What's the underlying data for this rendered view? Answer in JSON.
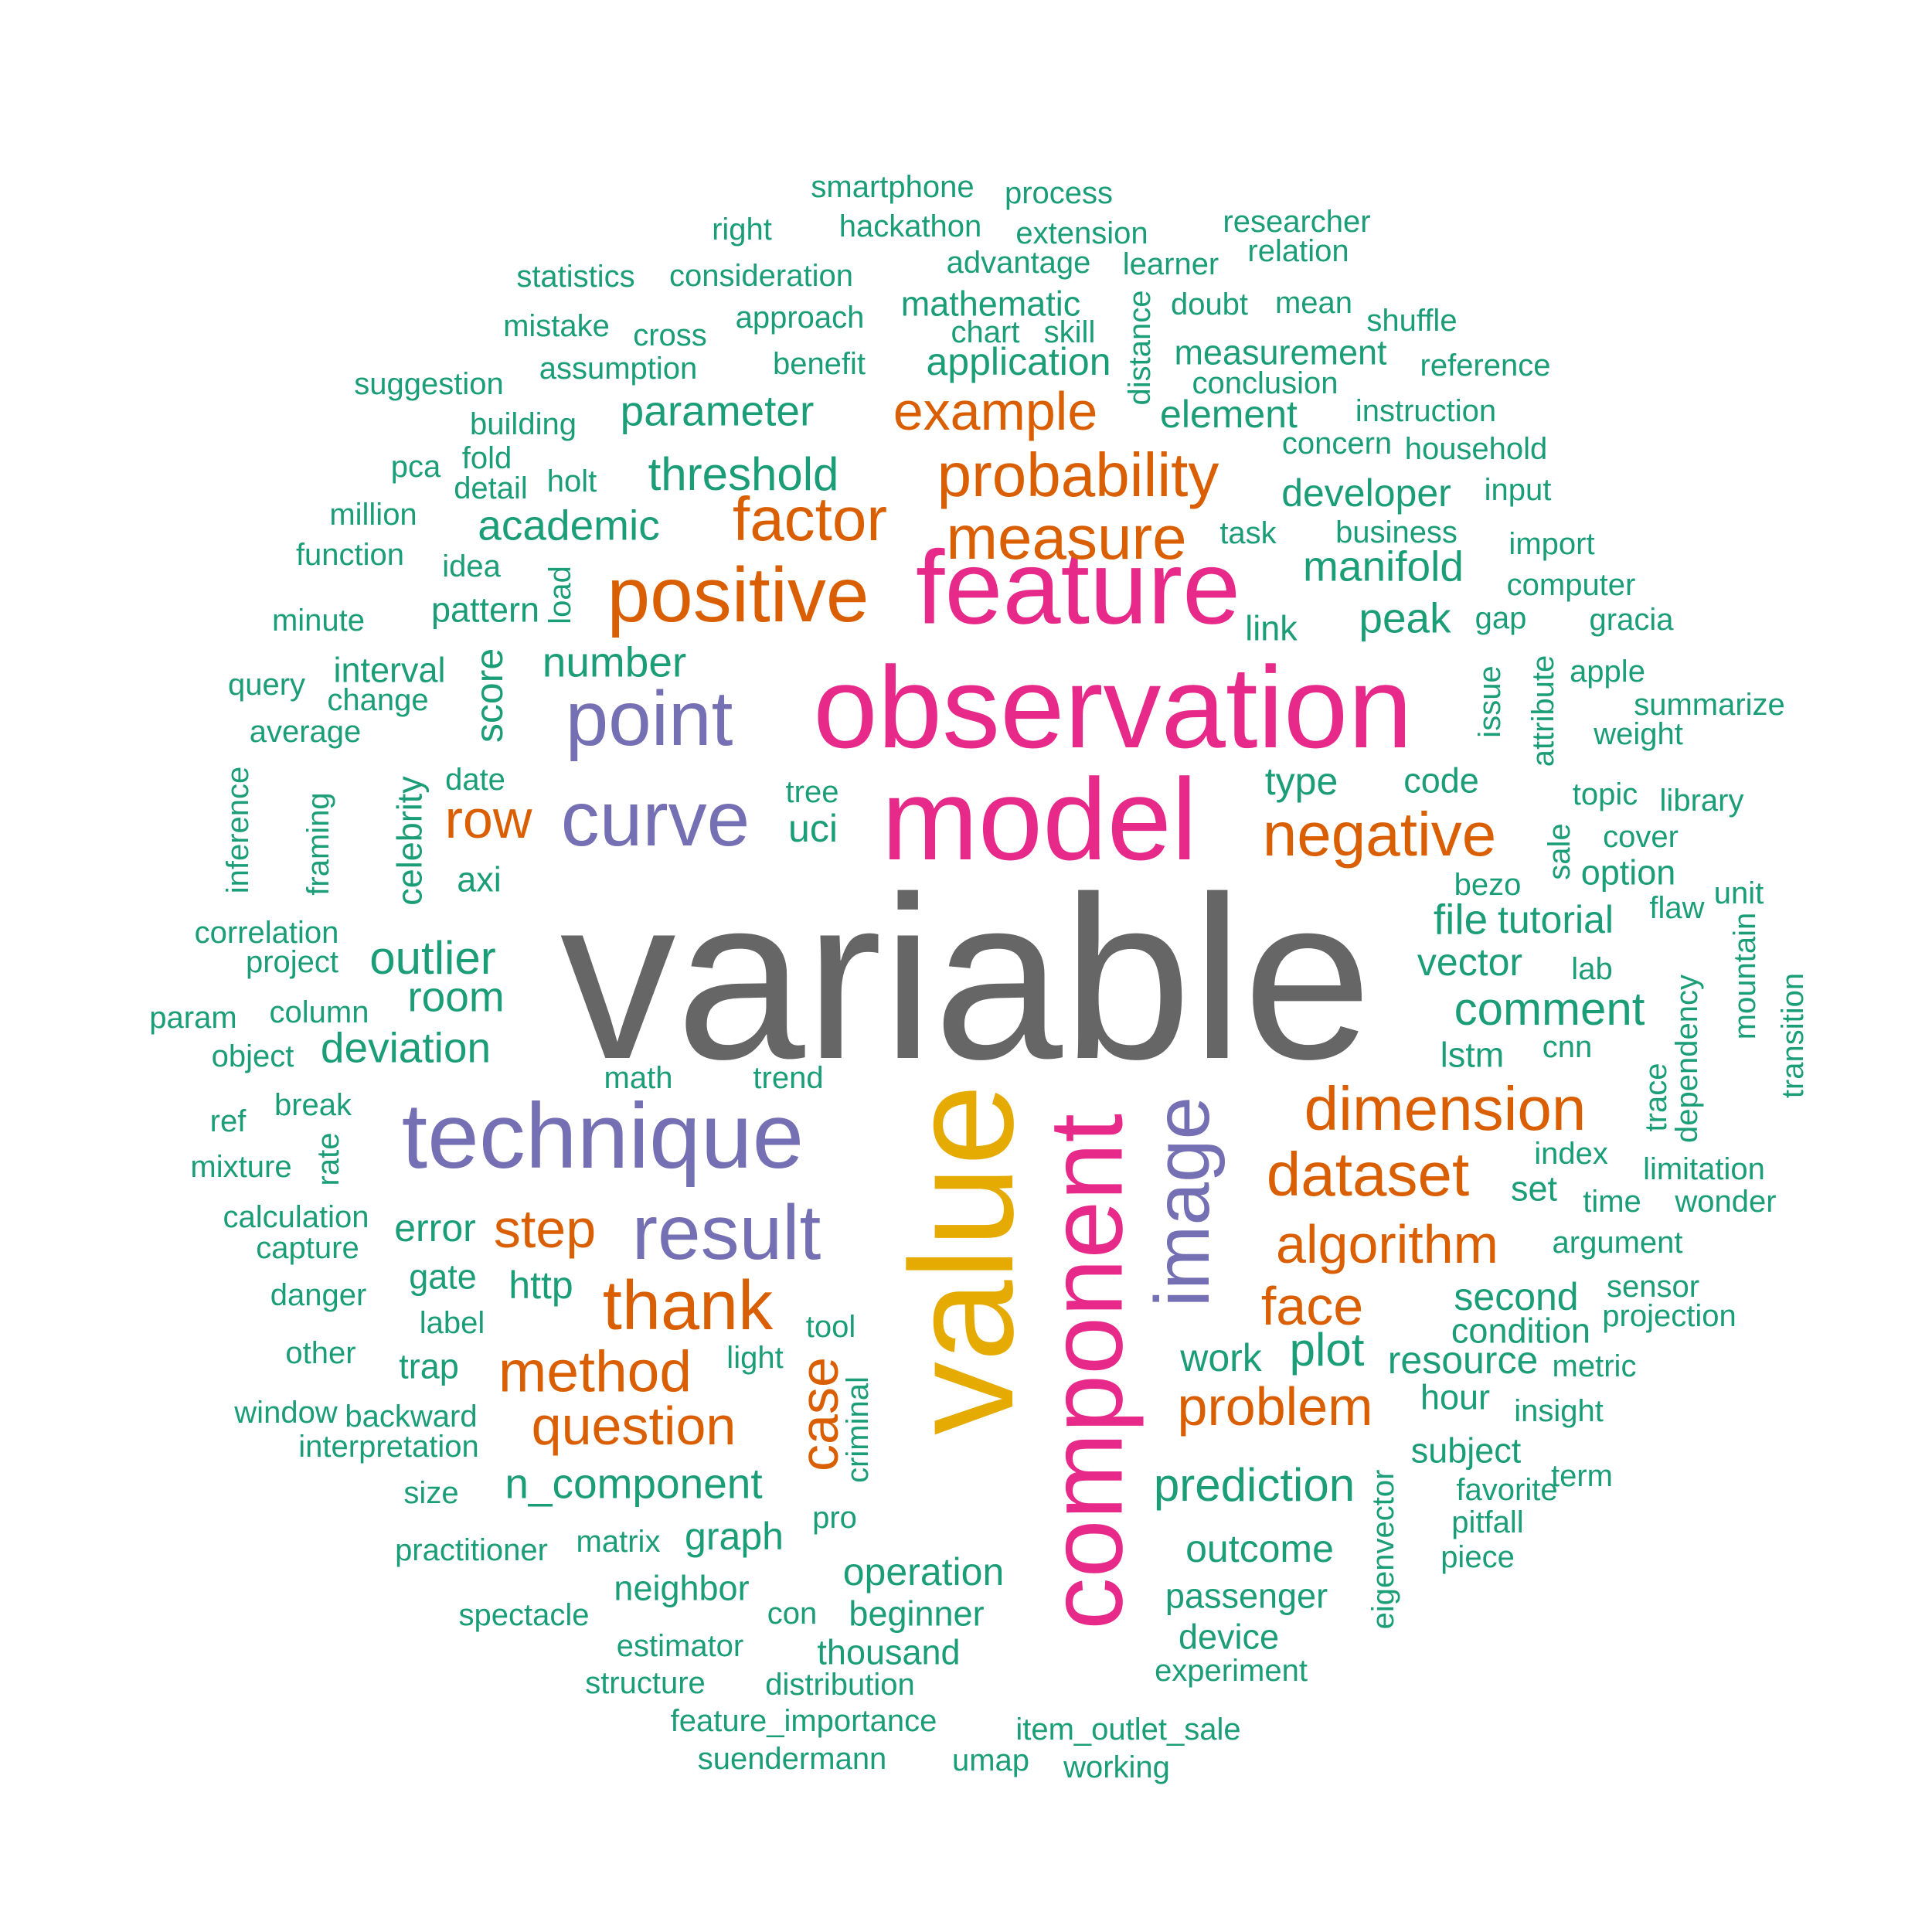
{
  "palette": {
    "gray": "#666666",
    "pink": "#e7298a",
    "purple": "#7570b3",
    "orange": "#d95f02",
    "gold": "#e6ab02",
    "green": "#1b9e77"
  },
  "words": [
    {
      "t": "variable",
      "c": "gray"
    },
    {
      "t": "observation",
      "c": "pink"
    },
    {
      "t": "model",
      "c": "pink"
    },
    {
      "t": "feature",
      "c": "pink"
    },
    {
      "t": "value",
      "c": "gold"
    },
    {
      "t": "component",
      "c": "pink"
    },
    {
      "t": "image",
      "c": "purple"
    },
    {
      "t": "technique",
      "c": "purple"
    },
    {
      "t": "point",
      "c": "purple"
    },
    {
      "t": "curve",
      "c": "purple"
    },
    {
      "t": "result",
      "c": "purple"
    },
    {
      "t": "positive",
      "c": "orange"
    },
    {
      "t": "probability",
      "c": "orange"
    },
    {
      "t": "factor",
      "c": "orange"
    },
    {
      "t": "measure",
      "c": "orange"
    },
    {
      "t": "example",
      "c": "orange"
    },
    {
      "t": "negative",
      "c": "orange"
    },
    {
      "t": "dimension",
      "c": "orange"
    },
    {
      "t": "dataset",
      "c": "orange"
    },
    {
      "t": "algorithm",
      "c": "orange"
    },
    {
      "t": "thank",
      "c": "orange"
    },
    {
      "t": "method",
      "c": "orange"
    },
    {
      "t": "question",
      "c": "orange"
    },
    {
      "t": "problem",
      "c": "orange"
    },
    {
      "t": "face",
      "c": "orange"
    },
    {
      "t": "step",
      "c": "orange"
    },
    {
      "t": "row",
      "c": "orange"
    },
    {
      "t": "case",
      "c": "orange"
    },
    {
      "t": "smartphone",
      "c": "green"
    },
    {
      "t": "process",
      "c": "green"
    },
    {
      "t": "right",
      "c": "green"
    },
    {
      "t": "hackathon",
      "c": "green"
    },
    {
      "t": "extension",
      "c": "green"
    },
    {
      "t": "researcher",
      "c": "green"
    },
    {
      "t": "relation",
      "c": "green"
    },
    {
      "t": "statistics",
      "c": "green"
    },
    {
      "t": "consideration",
      "c": "green"
    },
    {
      "t": "advantage",
      "c": "green"
    },
    {
      "t": "learner",
      "c": "green"
    },
    {
      "t": "mistake",
      "c": "green"
    },
    {
      "t": "cross",
      "c": "green"
    },
    {
      "t": "approach",
      "c": "green"
    },
    {
      "t": "mathematic",
      "c": "green"
    },
    {
      "t": "chart",
      "c": "green"
    },
    {
      "t": "skill",
      "c": "green"
    },
    {
      "t": "doubt",
      "c": "green"
    },
    {
      "t": "mean",
      "c": "green"
    },
    {
      "t": "shuffle",
      "c": "green"
    },
    {
      "t": "suggestion",
      "c": "green"
    },
    {
      "t": "assumption",
      "c": "green"
    },
    {
      "t": "benefit",
      "c": "green"
    },
    {
      "t": "application",
      "c": "green"
    },
    {
      "t": "measurement",
      "c": "green"
    },
    {
      "t": "reference",
      "c": "green"
    },
    {
      "t": "conclusion",
      "c": "green"
    },
    {
      "t": "distance",
      "c": "green"
    },
    {
      "t": "building",
      "c": "green"
    },
    {
      "t": "parameter",
      "c": "green"
    },
    {
      "t": "element",
      "c": "green"
    },
    {
      "t": "instruction",
      "c": "green"
    },
    {
      "t": "concern",
      "c": "green"
    },
    {
      "t": "household",
      "c": "green"
    },
    {
      "t": "pca",
      "c": "green"
    },
    {
      "t": "fold",
      "c": "green"
    },
    {
      "t": "detail",
      "c": "green"
    },
    {
      "t": "holt",
      "c": "green"
    },
    {
      "t": "threshold",
      "c": "green"
    },
    {
      "t": "million",
      "c": "green"
    },
    {
      "t": "developer",
      "c": "green"
    },
    {
      "t": "input",
      "c": "green"
    },
    {
      "t": "academic",
      "c": "green"
    },
    {
      "t": "task",
      "c": "green"
    },
    {
      "t": "business",
      "c": "green"
    },
    {
      "t": "import",
      "c": "green"
    },
    {
      "t": "function",
      "c": "green"
    },
    {
      "t": "idea",
      "c": "green"
    },
    {
      "t": "load",
      "c": "green"
    },
    {
      "t": "manifold",
      "c": "green"
    },
    {
      "t": "computer",
      "c": "green"
    },
    {
      "t": "minute",
      "c": "green"
    },
    {
      "t": "pattern",
      "c": "green"
    },
    {
      "t": "link",
      "c": "green"
    },
    {
      "t": "peak",
      "c": "green"
    },
    {
      "t": "gap",
      "c": "green"
    },
    {
      "t": "gracia",
      "c": "green"
    },
    {
      "t": "query",
      "c": "green"
    },
    {
      "t": "interval",
      "c": "green"
    },
    {
      "t": "number",
      "c": "green"
    },
    {
      "t": "change",
      "c": "green"
    },
    {
      "t": "score",
      "c": "green"
    },
    {
      "t": "issue",
      "c": "green"
    },
    {
      "t": "attribute",
      "c": "green"
    },
    {
      "t": "apple",
      "c": "green"
    },
    {
      "t": "summarize",
      "c": "green"
    },
    {
      "t": "average",
      "c": "green"
    },
    {
      "t": "weight",
      "c": "green"
    },
    {
      "t": "inference",
      "c": "green"
    },
    {
      "t": "framing",
      "c": "green"
    },
    {
      "t": "celebrity",
      "c": "green"
    },
    {
      "t": "date",
      "c": "green"
    },
    {
      "t": "tree",
      "c": "green"
    },
    {
      "t": "type",
      "c": "green"
    },
    {
      "t": "code",
      "c": "green"
    },
    {
      "t": "topic",
      "c": "green"
    },
    {
      "t": "library",
      "c": "green"
    },
    {
      "t": "uci",
      "c": "green"
    },
    {
      "t": "sale",
      "c": "green"
    },
    {
      "t": "cover",
      "c": "green"
    },
    {
      "t": "axi",
      "c": "green"
    },
    {
      "t": "option",
      "c": "green"
    },
    {
      "t": "bezo",
      "c": "green"
    },
    {
      "t": "unit",
      "c": "green"
    },
    {
      "t": "correlation",
      "c": "green"
    },
    {
      "t": "file",
      "c": "green"
    },
    {
      "t": "tutorial",
      "c": "green"
    },
    {
      "t": "flaw",
      "c": "green"
    },
    {
      "t": "project",
      "c": "green"
    },
    {
      "t": "outlier",
      "c": "green"
    },
    {
      "t": "vector",
      "c": "green"
    },
    {
      "t": "lab",
      "c": "green"
    },
    {
      "t": "mountain",
      "c": "green"
    },
    {
      "t": "transition",
      "c": "green"
    },
    {
      "t": "room",
      "c": "green"
    },
    {
      "t": "param",
      "c": "green"
    },
    {
      "t": "column",
      "c": "green"
    },
    {
      "t": "comment",
      "c": "green"
    },
    {
      "t": "dependency",
      "c": "green"
    },
    {
      "t": "object",
      "c": "green"
    },
    {
      "t": "deviation",
      "c": "green"
    },
    {
      "t": "lstm",
      "c": "green"
    },
    {
      "t": "cnn",
      "c": "green"
    },
    {
      "t": "math",
      "c": "green"
    },
    {
      "t": "trend",
      "c": "green"
    },
    {
      "t": "trace",
      "c": "green"
    },
    {
      "t": "ref",
      "c": "green"
    },
    {
      "t": "break",
      "c": "green"
    },
    {
      "t": "rate",
      "c": "green"
    },
    {
      "t": "index",
      "c": "green"
    },
    {
      "t": "mixture",
      "c": "green"
    },
    {
      "t": "limitation",
      "c": "green"
    },
    {
      "t": "set",
      "c": "green"
    },
    {
      "t": "time",
      "c": "green"
    },
    {
      "t": "wonder",
      "c": "green"
    },
    {
      "t": "calculation",
      "c": "green"
    },
    {
      "t": "capture",
      "c": "green"
    },
    {
      "t": "error",
      "c": "green"
    },
    {
      "t": "argument",
      "c": "green"
    },
    {
      "t": "gate",
      "c": "green"
    },
    {
      "t": "http",
      "c": "green"
    },
    {
      "t": "sensor",
      "c": "green"
    },
    {
      "t": "danger",
      "c": "green"
    },
    {
      "t": "second",
      "c": "green"
    },
    {
      "t": "projection",
      "c": "green"
    },
    {
      "t": "label",
      "c": "green"
    },
    {
      "t": "tool",
      "c": "green"
    },
    {
      "t": "condition",
      "c": "green"
    },
    {
      "t": "other",
      "c": "green"
    },
    {
      "t": "light",
      "c": "green"
    },
    {
      "t": "work",
      "c": "green"
    },
    {
      "t": "plot",
      "c": "green"
    },
    {
      "t": "resource",
      "c": "green"
    },
    {
      "t": "metric",
      "c": "green"
    },
    {
      "t": "trap",
      "c": "green"
    },
    {
      "t": "criminal",
      "c": "green"
    },
    {
      "t": "hour",
      "c": "green"
    },
    {
      "t": "insight",
      "c": "green"
    },
    {
      "t": "window",
      "c": "green"
    },
    {
      "t": "backward",
      "c": "green"
    },
    {
      "t": "interpretation",
      "c": "green"
    },
    {
      "t": "subject",
      "c": "green"
    },
    {
      "t": "size",
      "c": "green"
    },
    {
      "t": "n_component",
      "c": "green"
    },
    {
      "t": "prediction",
      "c": "green"
    },
    {
      "t": "eigenvector",
      "c": "green"
    },
    {
      "t": "favorite",
      "c": "green"
    },
    {
      "t": "term",
      "c": "green"
    },
    {
      "t": "pro",
      "c": "green"
    },
    {
      "t": "pitfall",
      "c": "green"
    },
    {
      "t": "practitioner",
      "c": "green"
    },
    {
      "t": "matrix",
      "c": "green"
    },
    {
      "t": "graph",
      "c": "green"
    },
    {
      "t": "outcome",
      "c": "green"
    },
    {
      "t": "piece",
      "c": "green"
    },
    {
      "t": "operation",
      "c": "green"
    },
    {
      "t": "neighbor",
      "c": "green"
    },
    {
      "t": "passenger",
      "c": "green"
    },
    {
      "t": "spectacle",
      "c": "green"
    },
    {
      "t": "con",
      "c": "green"
    },
    {
      "t": "beginner",
      "c": "green"
    },
    {
      "t": "device",
      "c": "green"
    },
    {
      "t": "estimator",
      "c": "green"
    },
    {
      "t": "thousand",
      "c": "green"
    },
    {
      "t": "experiment",
      "c": "green"
    },
    {
      "t": "structure",
      "c": "green"
    },
    {
      "t": "distribution",
      "c": "green"
    },
    {
      "t": "feature_importance",
      "c": "green"
    },
    {
      "t": "item_outlet_sale",
      "c": "green"
    },
    {
      "t": "suendermann",
      "c": "green"
    },
    {
      "t": "umap",
      "c": "green"
    },
    {
      "t": "working",
      "c": "green"
    }
  ]
}
